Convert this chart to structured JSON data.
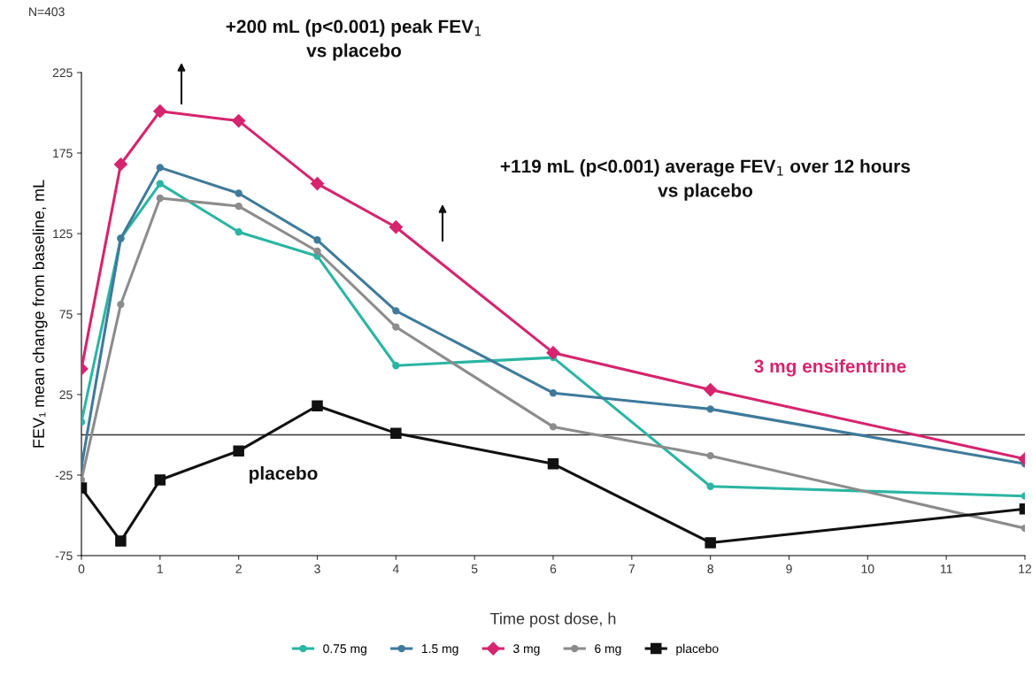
{
  "chart_data": {
    "type": "line",
    "xlabel": "Time post dose, h",
    "ylabel": "FEV₁ mean change from baseline, mL",
    "xlim": [
      0,
      12
    ],
    "xticks": [
      0,
      1,
      2,
      3,
      4,
      5,
      6,
      7,
      8,
      9,
      10,
      11,
      12
    ],
    "ylim": [
      -75,
      225
    ],
    "yticks": [
      -75,
      -25,
      25,
      75,
      125,
      175,
      225
    ],
    "grid": false,
    "legend": "bottom",
    "line_style": "solid",
    "x": [
      0,
      0.5,
      1,
      2,
      3,
      4,
      6,
      8,
      12
    ],
    "series": [
      {
        "name": "0.75 mg",
        "color": "#2bb5a3",
        "marker": "circle",
        "values": [
          8,
          122,
          156,
          126,
          111,
          43,
          48,
          -32,
          -38
        ]
      },
      {
        "name": "1.5 mg",
        "color": "#3f7a9b",
        "marker": "circle",
        "values": [
          -20,
          122,
          166,
          150,
          121,
          77,
          26,
          16,
          -18
        ]
      },
      {
        "name": "3 mg",
        "color": "#d6246e",
        "marker": "diamond",
        "values": [
          41,
          168,
          201,
          195,
          156,
          129,
          51,
          28,
          -15
        ]
      },
      {
        "name": "6 mg",
        "color": "#8c8c8c",
        "marker": "circle",
        "values": [
          -28,
          81,
          147,
          142,
          114,
          67,
          5,
          -13,
          -58
        ]
      },
      {
        "name": "placebo",
        "color": "#111111",
        "marker": "square",
        "values": [
          -33,
          -66,
          -28,
          -10,
          18,
          1,
          -18,
          -67,
          -46
        ]
      }
    ],
    "ref_lines": [
      {
        "axis": "y",
        "value": 0,
        "color": "#333333"
      }
    ],
    "annotations": [
      "N=403",
      "+200 mL (p<0.001) peak FEV$_{1}$\nvs placebo",
      "+119 mL (p<0.001) average FEV$_{1}$ over 12 hours\nvs placebo",
      "3 mg ensifentrine",
      "placebo"
    ]
  }
}
